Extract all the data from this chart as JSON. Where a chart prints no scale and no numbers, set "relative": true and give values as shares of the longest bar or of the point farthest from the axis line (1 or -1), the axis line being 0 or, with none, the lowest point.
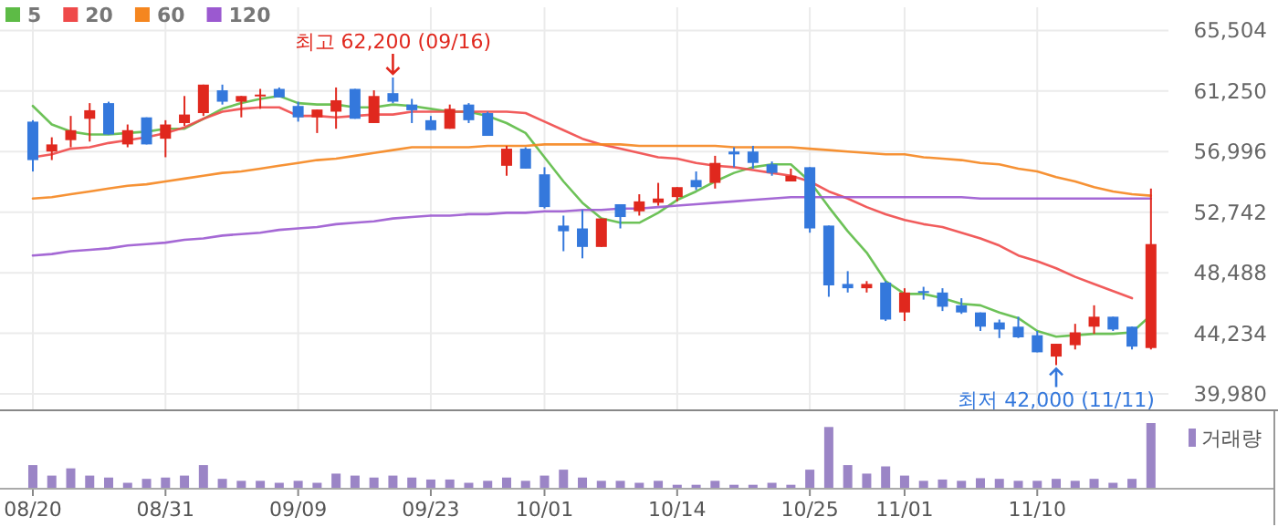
{
  "chart_data": [
    {
      "type": "candlestick",
      "categories": [
        "08/20",
        null,
        null,
        null,
        null,
        null,
        null,
        "08/31",
        null,
        null,
        null,
        null,
        null,
        null,
        "09/09",
        null,
        null,
        null,
        null,
        null,
        null,
        "09/23",
        null,
        null,
        null,
        null,
        null,
        "10/01",
        null,
        null,
        null,
        null,
        null,
        null,
        "10/14",
        null,
        null,
        null,
        null,
        null,
        null,
        "10/25",
        null,
        null,
        null,
        null,
        "11/01",
        null,
        null,
        null,
        null,
        null,
        null,
        "11/10",
        null,
        null,
        null,
        null,
        null,
        null
      ],
      "ylim": [
        39980,
        65504
      ],
      "yticks": [
        {
          "value": 39980,
          "label": "39,980"
        },
        {
          "value": 44234,
          "label": "44,234"
        },
        {
          "value": 48488,
          "label": "48,488"
        },
        {
          "value": 52742,
          "label": "52,742"
        },
        {
          "value": 56996,
          "label": "56,996"
        },
        {
          "value": 61250,
          "label": "61,250"
        },
        {
          "value": 65504,
          "label": "65,504"
        }
      ],
      "grid": true,
      "legend": "top left",
      "ohlc": [
        [
          59100,
          59200,
          55600,
          56400
        ],
        [
          57000,
          58000,
          56400,
          57500
        ],
        [
          57800,
          59500,
          57300,
          58500
        ],
        [
          59300,
          60400,
          57700,
          59900
        ],
        [
          60400,
          60500,
          58200,
          58200
        ],
        [
          57500,
          58900,
          57300,
          58500
        ],
        [
          59400,
          59400,
          57500,
          57500
        ],
        [
          57900,
          59200,
          56600,
          58900
        ],
        [
          59000,
          60900,
          58800,
          59600
        ],
        [
          59700,
          61700,
          59500,
          61700
        ],
        [
          61300,
          61700,
          60300,
          60500
        ],
        [
          60500,
          60900,
          59400,
          60900
        ],
        [
          60900,
          61400,
          60000,
          61000
        ],
        [
          61400,
          61500,
          60800,
          60800
        ],
        [
          60200,
          60500,
          59100,
          59400
        ],
        [
          59400,
          59950,
          58300,
          59950
        ],
        [
          59800,
          61500,
          58600,
          60600
        ],
        [
          61400,
          61400,
          59300,
          59300
        ],
        [
          59000,
          61300,
          59000,
          60900
        ],
        [
          61100,
          62200,
          60400,
          60500
        ],
        [
          60300,
          60700,
          59000,
          59900
        ],
        [
          59200,
          59500,
          58500,
          58500
        ],
        [
          58600,
          60300,
          58600,
          60000
        ],
        [
          60300,
          60400,
          59000,
          59200
        ],
        [
          59700,
          59800,
          58100,
          58100
        ],
        [
          56000,
          57400,
          55300,
          57200
        ],
        [
          57200,
          57300,
          55800,
          55800
        ],
        [
          55400,
          55900,
          53000,
          53100
        ],
        [
          51800,
          52500,
          50000,
          51400
        ],
        [
          51600,
          52900,
          49500,
          50300
        ],
        [
          50300,
          52300,
          50300,
          52300
        ],
        [
          53300,
          53300,
          51600,
          52400
        ],
        [
          52800,
          54000,
          52500,
          53500
        ],
        [
          53400,
          54800,
          53200,
          53700
        ],
        [
          53800,
          54500,
          53500,
          54500
        ],
        [
          55000,
          55600,
          54300,
          54500
        ],
        [
          54800,
          56700,
          54400,
          56200
        ],
        [
          57000,
          57300,
          55900,
          56800
        ],
        [
          57000,
          57400,
          55800,
          56200
        ],
        [
          56100,
          56300,
          55300,
          55500
        ],
        [
          54900,
          55800,
          54900,
          55300
        ],
        [
          55900,
          55900,
          51300,
          51600
        ],
        [
          51800,
          51800,
          46800,
          47600
        ],
        [
          47700,
          48600,
          47100,
          47400
        ],
        [
          47400,
          47900,
          47100,
          47700
        ],
        [
          47800,
          47900,
          45100,
          45200
        ],
        [
          45700,
          47400,
          45100,
          47100
        ],
        [
          47200,
          47500,
          46600,
          47100
        ],
        [
          47100,
          47400,
          45800,
          46100
        ],
        [
          46200,
          46700,
          45600,
          45700
        ],
        [
          45700,
          45700,
          44400,
          44700
        ],
        [
          45000,
          45200,
          43900,
          44500
        ],
        [
          44700,
          45400,
          43900,
          43950
        ],
        [
          44100,
          44400,
          42900,
          42900
        ],
        [
          42600,
          43500,
          42000,
          43500
        ],
        [
          43400,
          44900,
          43100,
          44300
        ],
        [
          44700,
          46200,
          44200,
          45400
        ],
        [
          45400,
          45400,
          44400,
          44500
        ],
        [
          44700,
          44700,
          43100,
          43300
        ],
        [
          43200,
          54400,
          43100,
          50500
        ]
      ],
      "series": [
        {
          "name": "5",
          "type": "line",
          "color": "#5dbb46",
          "values": [
            60200,
            58900,
            58400,
            58200,
            58200,
            58300,
            58400,
            58600,
            58600,
            59300,
            60000,
            60400,
            60700,
            60900,
            60400,
            60300,
            60300,
            60100,
            60100,
            60300,
            60200,
            60000,
            59800,
            59800,
            59500,
            59000,
            58300,
            56600,
            54900,
            53400,
            52300,
            52000,
            52000,
            52700,
            53600,
            54200,
            54900,
            55500,
            55900,
            56100,
            56100,
            54900,
            53100,
            51400,
            49900,
            47900,
            47000,
            47000,
            46700,
            46300,
            46200,
            45700,
            45300,
            44400,
            44000,
            44100,
            44200,
            44200,
            44300,
            45500
          ]
        },
        {
          "name": "20",
          "type": "line",
          "color": "#ef4a4a",
          "values": [
            56600,
            56800,
            57200,
            57300,
            57600,
            57800,
            58000,
            58300,
            58700,
            59300,
            59800,
            60000,
            60100,
            60100,
            59500,
            59500,
            59400,
            59500,
            59600,
            59600,
            59800,
            59800,
            59800,
            59800,
            59800,
            59800,
            59700,
            59100,
            58500,
            57900,
            57500,
            57200,
            56900,
            56600,
            56500,
            56200,
            56000,
            55900,
            55700,
            55500,
            55300,
            54900,
            54200,
            53700,
            53100,
            52600,
            52200,
            51900,
            51700,
            51300,
            50900,
            50400,
            49700,
            49300,
            48800,
            48200,
            47700,
            47200,
            46700,
            null
          ]
        },
        {
          "name": "60",
          "type": "line",
          "color": "#f5861f",
          "values": [
            53700,
            53800,
            54000,
            54200,
            54400,
            54600,
            54700,
            54900,
            55100,
            55300,
            55500,
            55600,
            55800,
            56000,
            56200,
            56400,
            56500,
            56700,
            56900,
            57100,
            57300,
            57300,
            57300,
            57300,
            57400,
            57400,
            57400,
            57500,
            57500,
            57500,
            57500,
            57500,
            57400,
            57400,
            57400,
            57400,
            57400,
            57300,
            57300,
            57300,
            57300,
            57200,
            57100,
            57000,
            56900,
            56800,
            56800,
            56600,
            56500,
            56400,
            56200,
            56100,
            55800,
            55600,
            55200,
            54900,
            54500,
            54200,
            54000,
            53900
          ]
        },
        {
          "name": "120",
          "type": "line",
          "color": "#9b59d0",
          "values": [
            49700,
            49800,
            50000,
            50100,
            50200,
            50400,
            50500,
            50600,
            50800,
            50900,
            51100,
            51200,
            51300,
            51500,
            51600,
            51700,
            51900,
            52000,
            52100,
            52300,
            52400,
            52500,
            52500,
            52600,
            52600,
            52700,
            52700,
            52800,
            52800,
            52900,
            52900,
            53000,
            53000,
            53100,
            53200,
            53300,
            53400,
            53500,
            53600,
            53700,
            53800,
            53800,
            53800,
            53800,
            53800,
            53800,
            53800,
            53800,
            53800,
            53800,
            53700,
            53700,
            53700,
            53700,
            53700,
            53700,
            53700,
            53700,
            53700,
            53700
          ]
        }
      ],
      "annotations": [
        {
          "text": "최고 62,200 (09/16)",
          "y": 62200
        },
        {
          "text": "최저 42,000 (11/11)",
          "y": 42000
        }
      ]
    },
    {
      "type": "bar",
      "relative": true,
      "legend": "top right",
      "categories": [
        null,
        null,
        null,
        null,
        null,
        null,
        null,
        null,
        null,
        null,
        null,
        null,
        null,
        null,
        null,
        null,
        null,
        null,
        null,
        null,
        null,
        null,
        null,
        null,
        null,
        null,
        null,
        null,
        null,
        null,
        null,
        null,
        null,
        null,
        null,
        null,
        null,
        null,
        null,
        null,
        null,
        null,
        null,
        null,
        null,
        null,
        null,
        null,
        null,
        null,
        null,
        null,
        null,
        null,
        null,
        null,
        null,
        null,
        null,
        null
      ],
      "series": [
        {
          "name": "거래량",
          "color": "#9b85c6",
          "values": [
            0.36,
            0.2,
            0.31,
            0.2,
            0.17,
            0.09,
            0.15,
            0.17,
            0.2,
            0.36,
            0.15,
            0.12,
            0.12,
            0.09,
            0.12,
            0.09,
            0.23,
            0.2,
            0.17,
            0.2,
            0.17,
            0.14,
            0.14,
            0.09,
            0.12,
            0.17,
            0.12,
            0.2,
            0.29,
            0.17,
            0.12,
            0.12,
            0.09,
            0.12,
            0.06,
            0.06,
            0.12,
            0.06,
            0.06,
            0.09,
            0.06,
            0.29,
            0.94,
            0.36,
            0.23,
            0.34,
            0.2,
            0.12,
            0.14,
            0.12,
            0.16,
            0.15,
            0.12,
            0.12,
            0.15,
            0.12,
            0.15,
            0.09,
            0.15,
            1
          ]
        }
      ]
    }
  ]
}
